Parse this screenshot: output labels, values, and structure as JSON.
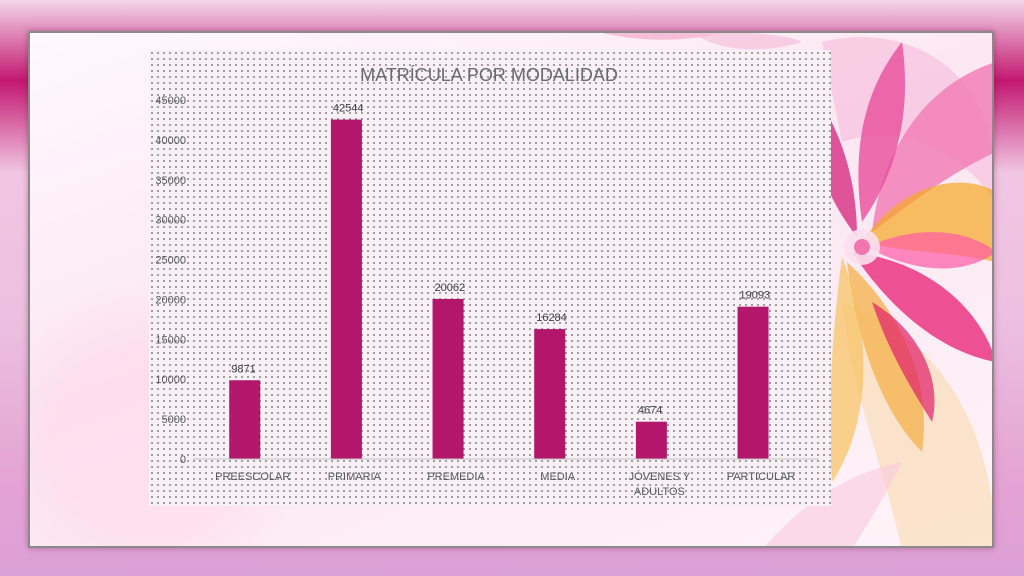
{
  "colors": {
    "bar": "#b3176b",
    "axis": "#bfbfbf",
    "text": "#595959",
    "title": "#6b6b6b"
  },
  "chart_data": {
    "type": "bar",
    "title": "MATRÍCULA  POR MODALIDAD",
    "categories": [
      "PREESCOLAR",
      "PRIMARIA",
      "PREMEDIA",
      "MEDIA",
      "JÓVENES Y ADULTOS",
      "PARTICULAR"
    ],
    "values": [
      9871,
      42544,
      20062,
      16284,
      4674,
      19093
    ],
    "data_labels": [
      "9871",
      "42544",
      "20062",
      "16284",
      "4674",
      "19093"
    ],
    "yticks": [
      "0",
      "5000",
      "10000",
      "15000",
      "20000",
      "25000",
      "30000",
      "35000",
      "40000",
      "45000"
    ],
    "ylim": [
      0,
      45000
    ],
    "grid": false,
    "legend": "none"
  }
}
